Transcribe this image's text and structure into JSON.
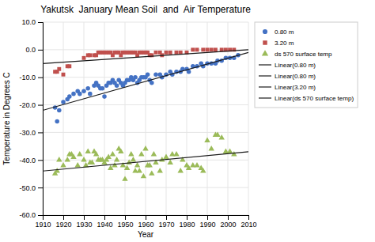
{
  "chart_data": {
    "type": "scatter",
    "title": "Yakutsk  January Mean Soil  and  Air Temperature",
    "x_label": "Year",
    "y_label": "Temperature in Degrees C",
    "xlim": [
      1910,
      2010
    ],
    "ylim": [
      -60,
      10
    ],
    "xticks": [
      1910,
      1920,
      1930,
      1940,
      1950,
      1960,
      1970,
      1980,
      1990,
      2000,
      2010
    ],
    "yticks": [
      {
        "value": 10,
        "label": "10.0"
      },
      {
        "value": 0,
        "label": "0.0"
      },
      {
        "value": -10,
        "label": "-10.0"
      },
      {
        "value": -20,
        "label": "-20.0"
      },
      {
        "value": -30,
        "label": "-30.0"
      },
      {
        "value": -40,
        "label": "-40.0"
      },
      {
        "value": -50,
        "label": "-50.0"
      },
      {
        "value": -60,
        "label": "-60.0"
      }
    ],
    "grid": true,
    "legend": "right",
    "series": [
      {
        "name": "0.80 m",
        "color": "#4472c4",
        "marker": "circle",
        "x": [
          1916,
          1917,
          1918,
          1920,
          1922,
          1923,
          1925,
          1927,
          1928,
          1930,
          1932,
          1933,
          1935,
          1936,
          1937,
          1938,
          1939,
          1940,
          1941,
          1942,
          1943,
          1944,
          1945,
          1946,
          1947,
          1948,
          1949,
          1950,
          1951,
          1952,
          1953,
          1954,
          1955,
          1956,
          1957,
          1958,
          1959,
          1960,
          1961,
          1962,
          1963,
          1965,
          1967,
          1968,
          1970,
          1972,
          1973,
          1975,
          1977,
          1978,
          1980,
          1981,
          1983,
          1985,
          1987,
          1988,
          1990,
          1992,
          1994,
          1995,
          1997,
          1999,
          2001,
          2003,
          2005
        ],
        "values": [
          -21,
          -26,
          -22,
          -19,
          -18,
          -17,
          -16,
          -15,
          -16,
          -15,
          -14,
          -16,
          -13,
          -12,
          -13,
          -14,
          -14,
          -17,
          -13,
          -12,
          -12,
          -11,
          -12,
          -13,
          -11,
          -12,
          -13,
          -12,
          -11,
          -11,
          -10,
          -11,
          -10,
          -12,
          -11,
          -10,
          -10,
          -10,
          -9,
          -11,
          -12,
          -9,
          -9,
          -10,
          -9,
          -8,
          -9,
          -8,
          -8,
          -7,
          -7,
          -8,
          -6,
          -6,
          -5,
          -6,
          -5,
          -5,
          -5,
          -4,
          -4,
          -3,
          -3,
          -3,
          -2
        ],
        "trend": {
          "x": [
            1910,
            2010
          ],
          "values": [
            -22,
            -1
          ],
          "color": "#1a1a1a"
        }
      },
      {
        "name": "3.20 m",
        "color": "#c0504d",
        "marker": "square",
        "x": [
          1916,
          1917,
          1918,
          1920,
          1922,
          1923,
          1930,
          1932,
          1933,
          1935,
          1936,
          1937,
          1938,
          1939,
          1940,
          1941,
          1942,
          1943,
          1944,
          1945,
          1946,
          1947,
          1948,
          1949,
          1950,
          1951,
          1952,
          1953,
          1954,
          1955,
          1956,
          1957,
          1958,
          1959,
          1960,
          1961,
          1962,
          1963,
          1965,
          1967,
          1968,
          1970,
          1972,
          1975,
          1977,
          1980,
          1983,
          1985,
          1988,
          1990,
          1992,
          1994,
          1997,
          1999,
          2001,
          2003
        ],
        "values": [
          -8,
          -8,
          -7,
          -9,
          -6,
          -6,
          -3,
          -2,
          -2,
          -2,
          -2,
          -1,
          -1,
          -1,
          -1,
          -1,
          -1,
          -1,
          -2,
          -1,
          -1,
          -1,
          -2,
          -1,
          -1,
          -1,
          -1,
          -1,
          -1,
          -1,
          -2,
          -1,
          -1,
          -1,
          -1,
          -1,
          -2,
          -2,
          -1,
          -1,
          -2,
          -1,
          -1,
          -1,
          -1,
          -1,
          0,
          0,
          0,
          0,
          0,
          0,
          0,
          0,
          0,
          0
        ],
        "trend": {
          "x": [
            1910,
            2010
          ],
          "values": [
            -5,
            0
          ],
          "color": "#1a1a1a"
        }
      },
      {
        "name": "ds 570 surface temp",
        "color": "#9bbb59",
        "marker": "triangle",
        "x": [
          1916,
          1917,
          1918,
          1920,
          1922,
          1923,
          1924,
          1925,
          1927,
          1928,
          1930,
          1931,
          1932,
          1933,
          1934,
          1935,
          1936,
          1937,
          1938,
          1939,
          1940,
          1941,
          1942,
          1943,
          1944,
          1945,
          1946,
          1947,
          1948,
          1949,
          1950,
          1951,
          1952,
          1953,
          1954,
          1955,
          1956,
          1957,
          1958,
          1959,
          1960,
          1961,
          1962,
          1963,
          1964,
          1965,
          1967,
          1968,
          1970,
          1972,
          1973,
          1975,
          1977,
          1978,
          1980,
          1981,
          1983,
          1985,
          1987,
          1988,
          1990,
          1992,
          1994,
          1995,
          1997,
          1999,
          2001,
          2003
        ],
        "values": [
          -45,
          -44,
          -40,
          -42,
          -40,
          -38,
          -38,
          -39,
          -42,
          -38,
          -40,
          -42,
          -37,
          -41,
          -41,
          -37,
          -38,
          -40,
          -40,
          -40,
          -41,
          -40,
          -39,
          -43,
          -38,
          -42,
          -40,
          -36,
          -37,
          -42,
          -47,
          -43,
          -41,
          -38,
          -40,
          -44,
          -42,
          -44,
          -38,
          -46,
          -36,
          -42,
          -42,
          -45,
          -38,
          -41,
          -44,
          -40,
          -39,
          -41,
          -38,
          -38,
          -44,
          -40,
          -42,
          -43,
          -42,
          -42,
          -43,
          -44,
          -33,
          -36,
          -31,
          -31,
          -32,
          -37,
          -37,
          -38
        ],
        "trend": {
          "x": [
            1910,
            2010
          ],
          "values": [
            -44,
            -37
          ],
          "color": "#1a1a1a"
        }
      }
    ],
    "legend_labels": [
      "0.80 m",
      "3.20 m",
      "ds 570 surface temp",
      "Linear(0.80 m)",
      "Linear(0.80 m)",
      "Linear(3.20 m)",
      "Linear(ds 570 surface temp)"
    ]
  }
}
